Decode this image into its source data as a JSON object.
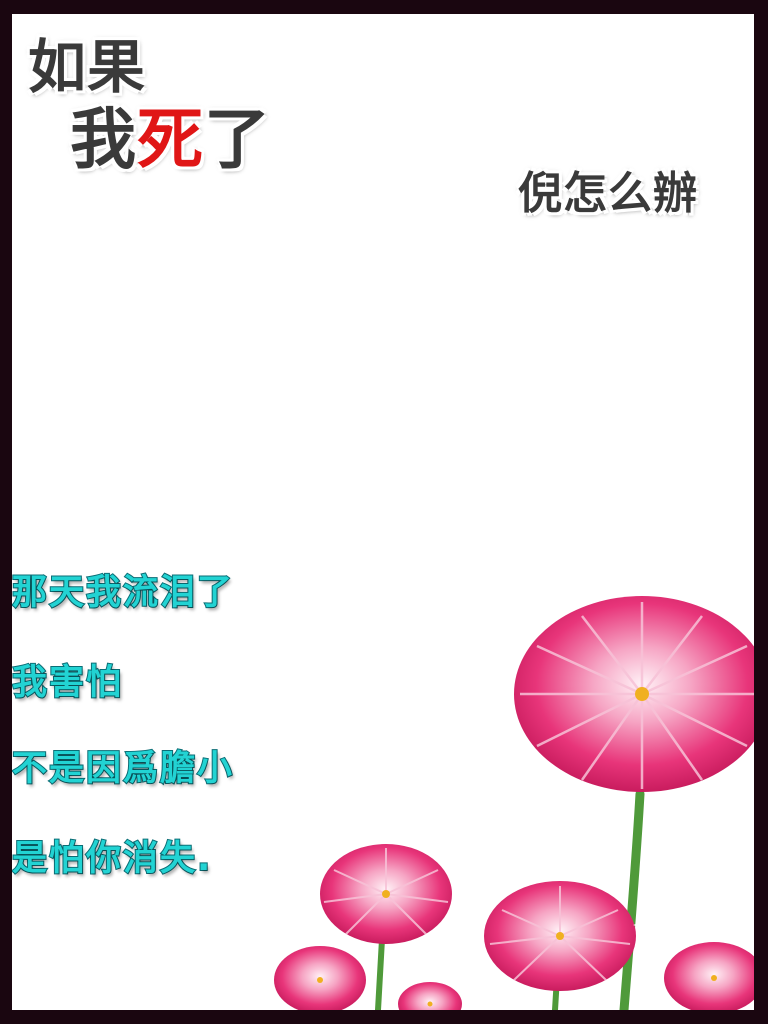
{
  "title": {
    "line1": "如果",
    "line2_a": "我",
    "line2_b": "死",
    "line2_c": "了",
    "subtitle": "倪怎么辦"
  },
  "poem": {
    "lines": [
      "那天我流泪了",
      "我害怕",
      "不是因爲膽小",
      "是怕你消失."
    ]
  },
  "colors": {
    "frame": "#1a0610",
    "title": "#3a3a3a",
    "title_accent": "#e01616",
    "poem_fill": "#22d3d3",
    "poem_outline": "#0c6e76",
    "flower_petal": "#e8357a",
    "stem": "#4f9a3a"
  },
  "decoration": {
    "flowers_icon": "pink-daisy-flowers-icon"
  }
}
